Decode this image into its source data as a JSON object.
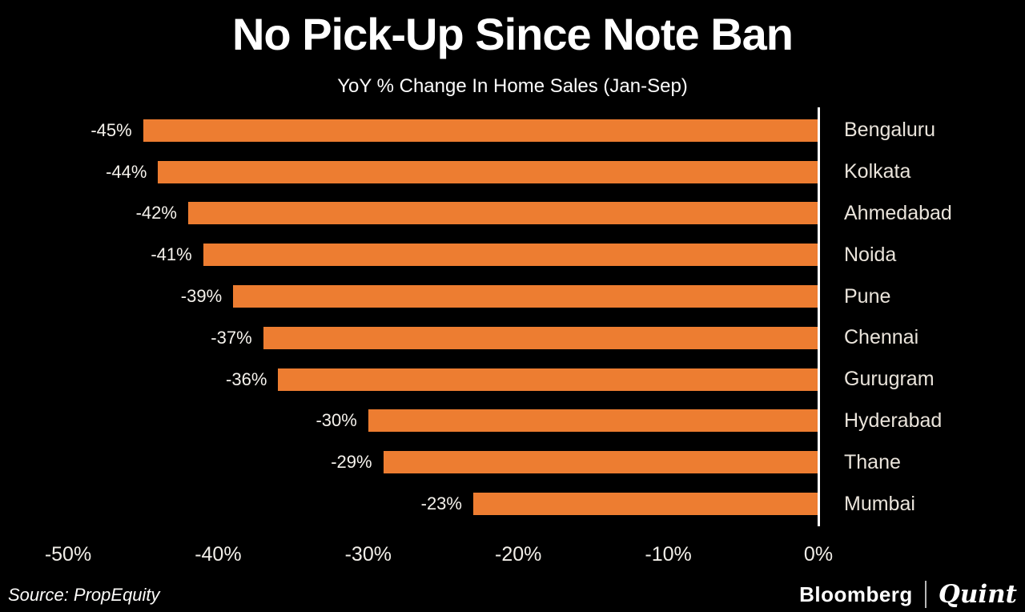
{
  "title": "No Pick-Up Since Note Ban",
  "subtitle": "YoY % Change In Home Sales (Jan-Sep)",
  "chart_data": {
    "type": "bar",
    "orientation": "horizontal",
    "title": "No Pick-Up Since Note Ban",
    "subtitle": "YoY % Change In Home Sales (Jan-Sep)",
    "categories": [
      "Bengaluru",
      "Kolkata",
      "Ahmedabad",
      "Noida",
      "Pune",
      "Chennai",
      "Gurugram",
      "Hyderabad",
      "Thane",
      "Mumbai"
    ],
    "values": [
      -45,
      -44,
      -42,
      -41,
      -39,
      -37,
      -36,
      -30,
      -29,
      -23
    ],
    "value_labels": [
      "-45%",
      "-44%",
      "-42%",
      "-41%",
      "-39%",
      "-37%",
      "-36%",
      "-30%",
      "-29%",
      "-23%"
    ],
    "x_ticks": [
      "-50%",
      "-40%",
      "-30%",
      "-20%",
      "-10%",
      "0%"
    ],
    "xlim": [
      -50,
      0
    ],
    "grid": false,
    "legend": "none",
    "bar_color": "#ED7D31",
    "background_color": "#000000",
    "axis_line_color": "#FFFFFF"
  },
  "footer": {
    "source": "Source: PropEquity",
    "brand_left": "Bloomberg",
    "brand_right": "Quint"
  }
}
